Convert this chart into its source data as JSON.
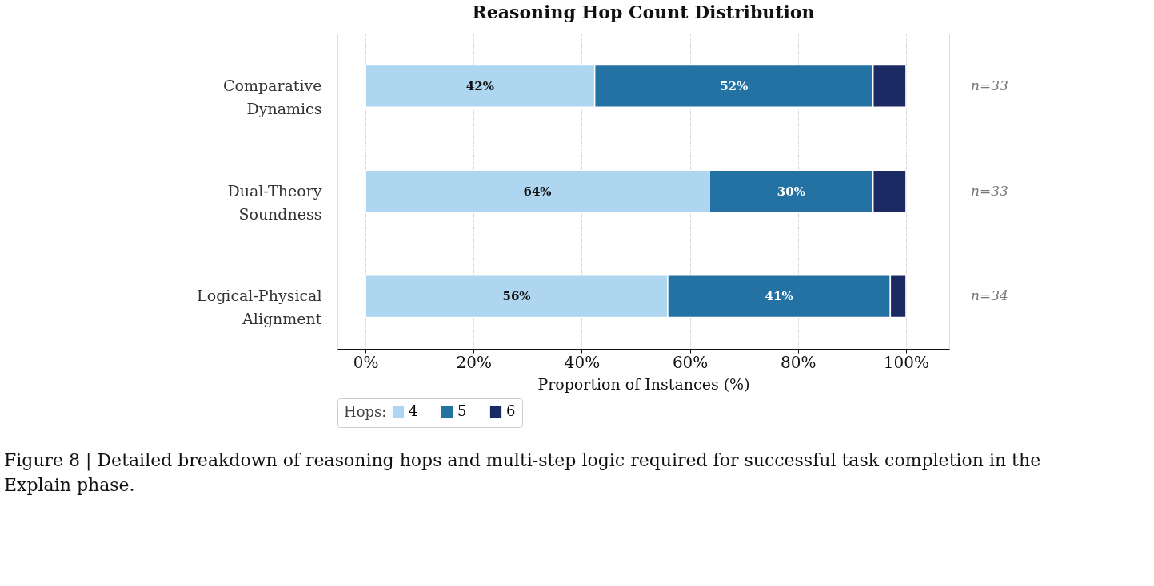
{
  "chart_data": {
    "type": "bar",
    "orientation": "horizontal",
    "stacked": true,
    "title": "Reasoning Hop Count Distribution",
    "xlabel": "Proportion of Instances (%)",
    "legend_title": "Hops:",
    "categories": [
      "Comparative Dynamics",
      "Dual-Theory Soundness",
      "Logical-Physical Alignment"
    ],
    "series": [
      {
        "name": "4",
        "color": "#aed6f1",
        "values": [
          42.4,
          63.6,
          55.9
        ],
        "value_labels": [
          "42%",
          "64%",
          "56%"
        ]
      },
      {
        "name": "5",
        "color": "#2471a3",
        "values": [
          51.5,
          30.3,
          41.2
        ],
        "value_labels": [
          "52%",
          "30%",
          "41%"
        ]
      },
      {
        "name": "6",
        "color": "#1b2a63",
        "values": [
          6.1,
          6.1,
          2.9
        ]
      }
    ],
    "xlim": [
      -5.2,
      108
    ],
    "xticks": [
      {
        "value": 0,
        "label": "0%"
      },
      {
        "value": 20,
        "label": "20%"
      },
      {
        "value": 40,
        "label": "40%"
      },
      {
        "value": 60,
        "label": "60%"
      },
      {
        "value": 80,
        "label": "80%"
      },
      {
        "value": 100,
        "label": "100%"
      }
    ],
    "grid": "x",
    "legend": "bottom",
    "annotations": [
      "n=33",
      "n=33",
      "n=34",
      "Figure 8 | Detailed breakdown of reasoning hops and multi-step logic required for successful task completion in the Explain phase."
    ]
  }
}
